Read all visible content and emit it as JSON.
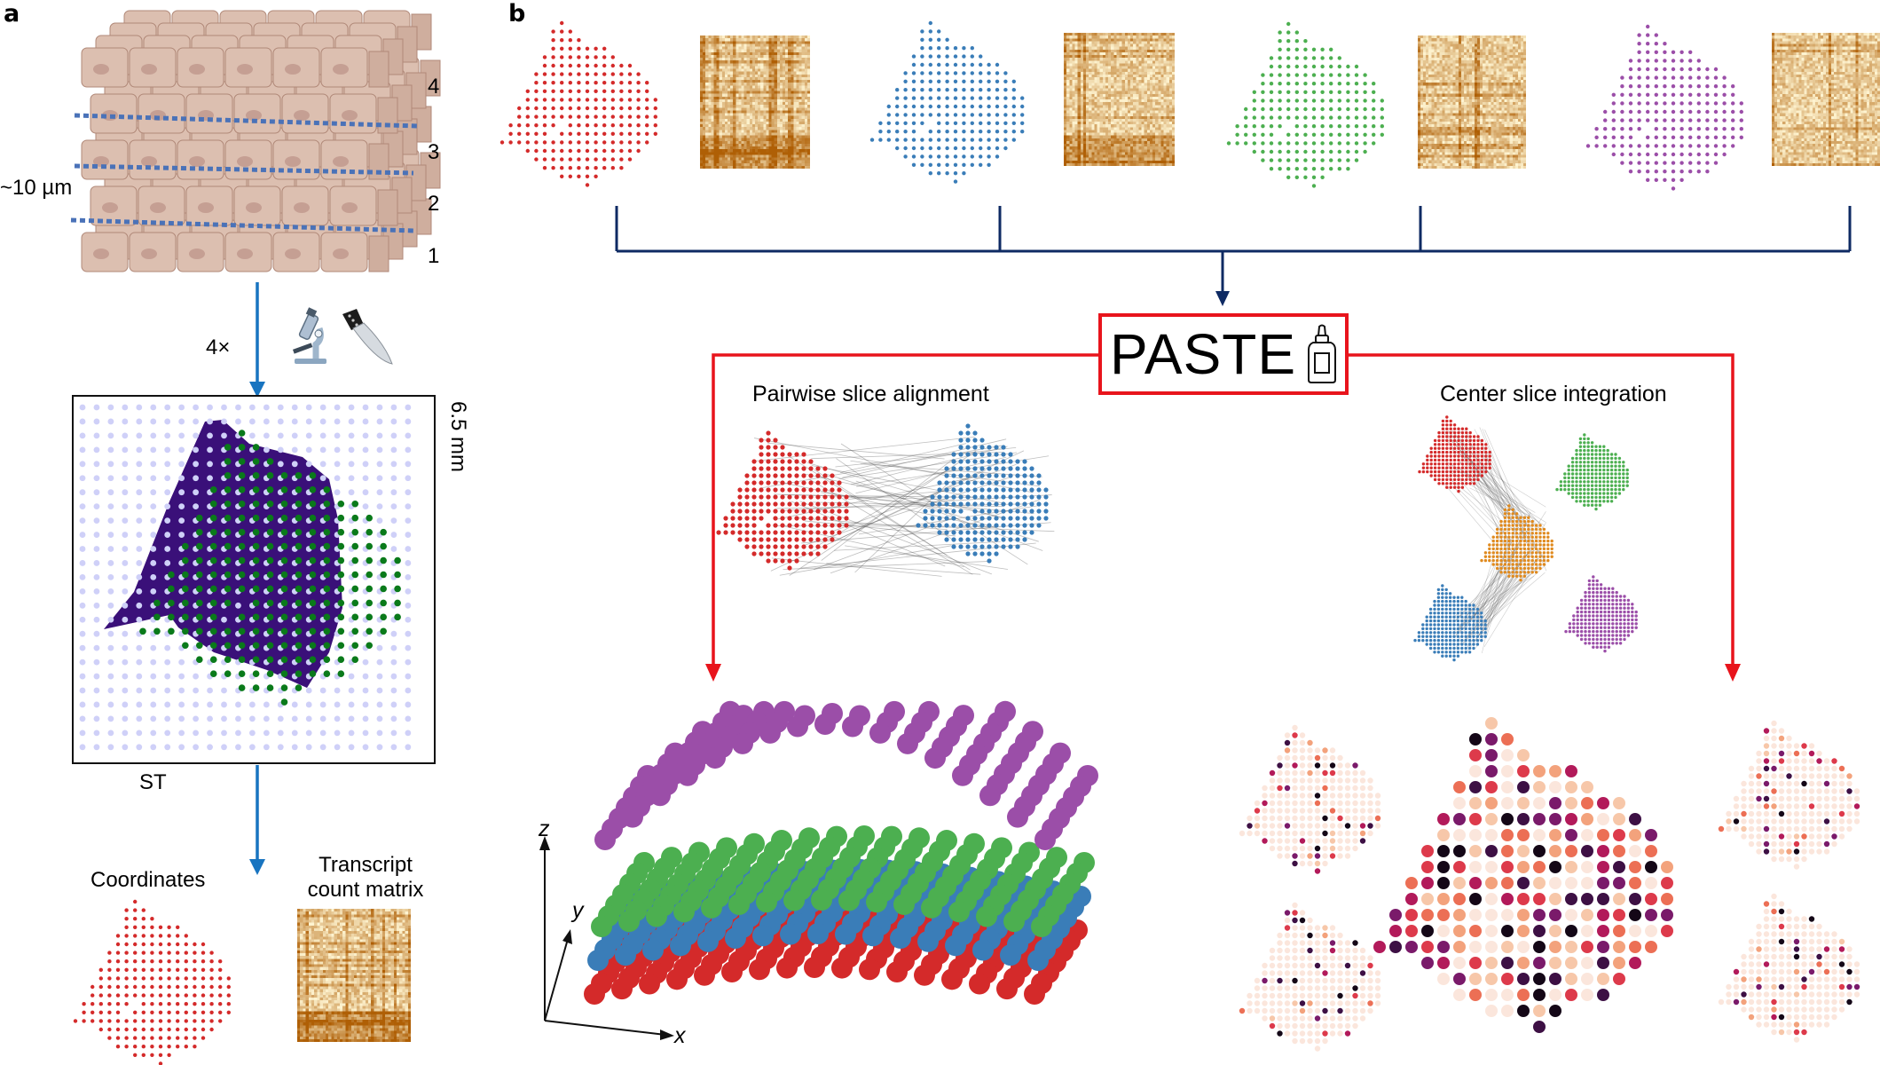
{
  "panel_a": {
    "label": "a",
    "layer_numbers": [
      "4",
      "3",
      "2",
      "1"
    ],
    "thickness_label": "~10 µm",
    "repeat_label": "4×",
    "tool_icons": [
      "microscope-icon",
      "knife-icon"
    ],
    "array_size_label": "6.5 mm",
    "platform_label": "ST",
    "coordinates_label": "Coordinates",
    "matrix_label_line1": "Transcript",
    "matrix_label_line2": "count matrix",
    "colors": {
      "cells": "#dcbfb0",
      "nucleus": "#c59f93",
      "cut_line": "#4a72b8",
      "arrow": "#1874c0",
      "tissue": "#3a1079",
      "spot_in_tissue": "#0a7a1a",
      "spot_background": "#cfd0f8",
      "coordinates_dots": "#d42a2a"
    }
  },
  "panel_b": {
    "label": "b",
    "slices": [
      {
        "name": "slice-1",
        "color": "#d42a2a"
      },
      {
        "name": "slice-2",
        "color": "#3a7db8"
      },
      {
        "name": "slice-3",
        "color": "#4caf50"
      },
      {
        "name": "slice-4",
        "color": "#9b4ea8"
      }
    ],
    "center_color": "#e08a1e",
    "method_name": "PASTE",
    "method_icon": "glue-bottle-icon",
    "left_branch_title": "Pairwise slice alignment",
    "right_branch_title": "Center slice integration",
    "axis_labels": {
      "x": "x",
      "y": "y",
      "z": "z"
    },
    "colors": {
      "connector": "#0e2a63",
      "branch": "#e8141c",
      "heatmap_low": "#fff6d8",
      "heatmap_high": "#b84a05"
    }
  }
}
